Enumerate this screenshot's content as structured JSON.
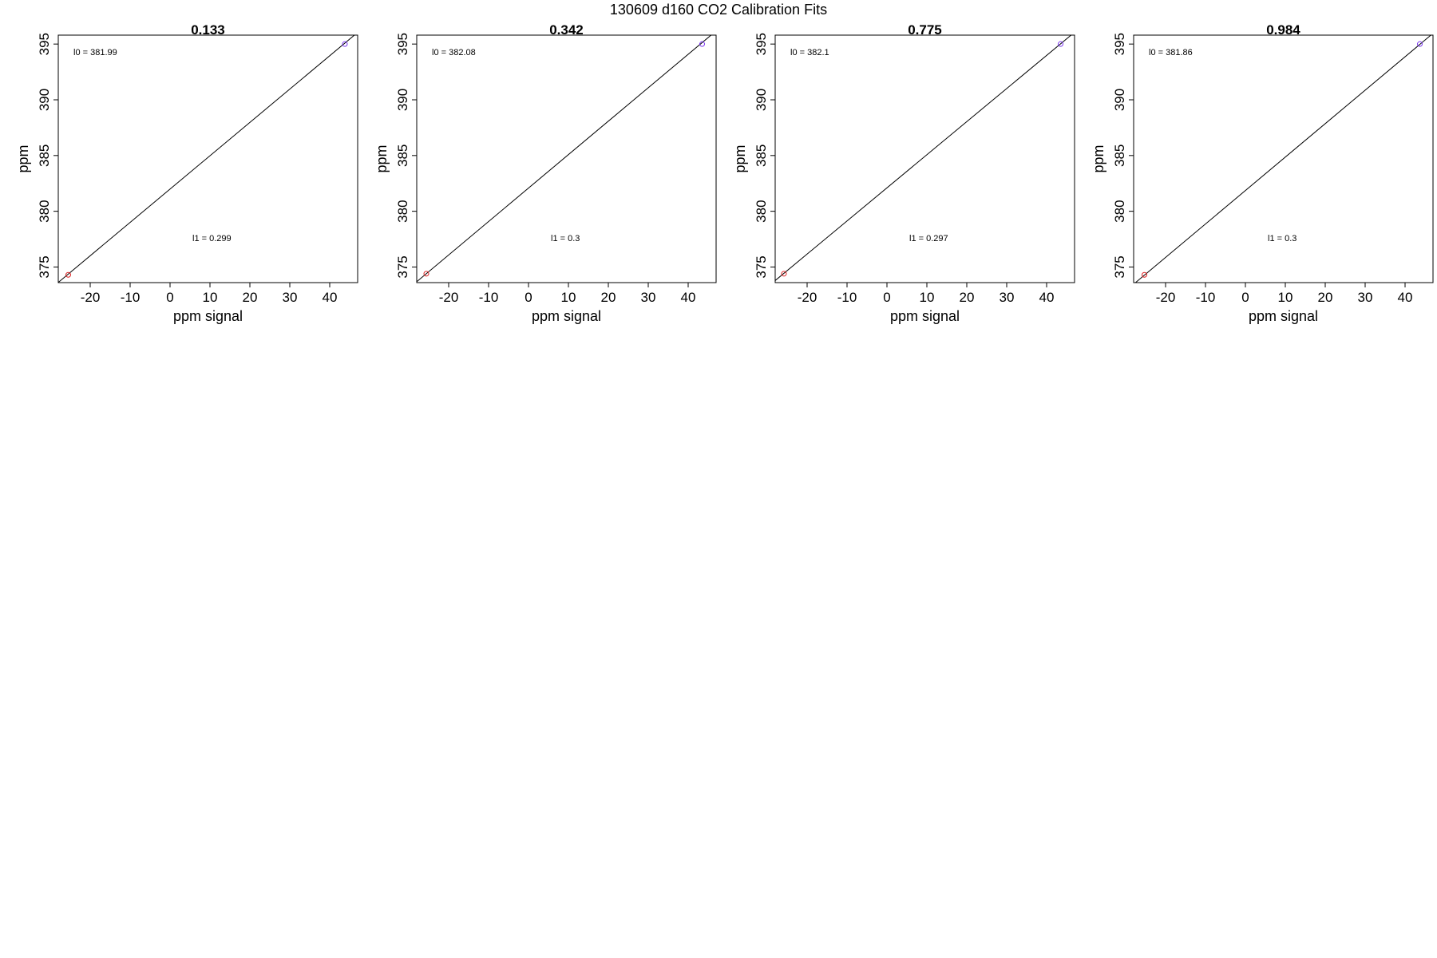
{
  "suptitle": "130609   d160   CO2 Calibration Fits",
  "chart_data": [
    {
      "type": "scatter",
      "title": "0.133",
      "xlabel": "ppm signal",
      "ylabel": "ppm",
      "xlim": [
        -28,
        47
      ],
      "ylim": [
        373.6,
        395.8
      ],
      "xticks": [
        -20,
        -10,
        0,
        10,
        20,
        30,
        40
      ],
      "yticks": [
        375,
        380,
        385,
        390,
        395
      ],
      "grid": false,
      "points": [
        {
          "x": -25.5,
          "y": 374.3,
          "color": "#dd2222"
        },
        {
          "x": 43.8,
          "y": 395.0,
          "color": "#7733ee"
        }
      ],
      "fit": {
        "intercept": 381.99,
        "slope": 0.299
      },
      "annotations": {
        "intercept_label": "l0 =  381.99",
        "slope_label": "l1 =  0.299"
      }
    },
    {
      "type": "scatter",
      "title": "0.342",
      "xlabel": "ppm signal",
      "ylabel": "ppm",
      "xlim": [
        -28,
        47
      ],
      "ylim": [
        373.6,
        395.8
      ],
      "xticks": [
        -20,
        -10,
        0,
        10,
        20,
        30,
        40
      ],
      "yticks": [
        375,
        380,
        385,
        390,
        395
      ],
      "grid": false,
      "points": [
        {
          "x": -25.6,
          "y": 374.4,
          "color": "#dd2222"
        },
        {
          "x": 43.5,
          "y": 395.0,
          "color": "#7733ee"
        }
      ],
      "fit": {
        "intercept": 382.08,
        "slope": 0.3
      },
      "annotations": {
        "intercept_label": "l0 =  382.08",
        "slope_label": "l1 =  0.3"
      }
    },
    {
      "type": "scatter",
      "title": "0.775",
      "xlabel": "ppm signal",
      "ylabel": "ppm",
      "xlim": [
        -28,
        47
      ],
      "ylim": [
        373.6,
        395.8
      ],
      "xticks": [
        -20,
        -10,
        0,
        10,
        20,
        30,
        40
      ],
      "yticks": [
        375,
        380,
        385,
        390,
        395
      ],
      "grid": false,
      "points": [
        {
          "x": -25.8,
          "y": 374.4,
          "color": "#dd2222"
        },
        {
          "x": 43.5,
          "y": 395.0,
          "color": "#7733ee"
        }
      ],
      "fit": {
        "intercept": 382.1,
        "slope": 0.297
      },
      "annotations": {
        "intercept_label": "l0 =  382.1",
        "slope_label": "l1 =  0.297"
      }
    },
    {
      "type": "scatter",
      "title": "0.984",
      "xlabel": "ppm signal",
      "ylabel": "ppm",
      "xlim": [
        -28,
        47
      ],
      "ylim": [
        373.6,
        395.8
      ],
      "xticks": [
        -20,
        -10,
        0,
        10,
        20,
        30,
        40
      ],
      "yticks": [
        375,
        380,
        385,
        390,
        395
      ],
      "grid": false,
      "points": [
        {
          "x": -25.3,
          "y": 374.3,
          "color": "#dd2222"
        },
        {
          "x": 43.7,
          "y": 395.0,
          "color": "#7733ee"
        }
      ],
      "fit": {
        "intercept": 381.86,
        "slope": 0.3
      },
      "annotations": {
        "intercept_label": "l0 =  381.86",
        "slope_label": "l1 =  0.3"
      }
    }
  ]
}
